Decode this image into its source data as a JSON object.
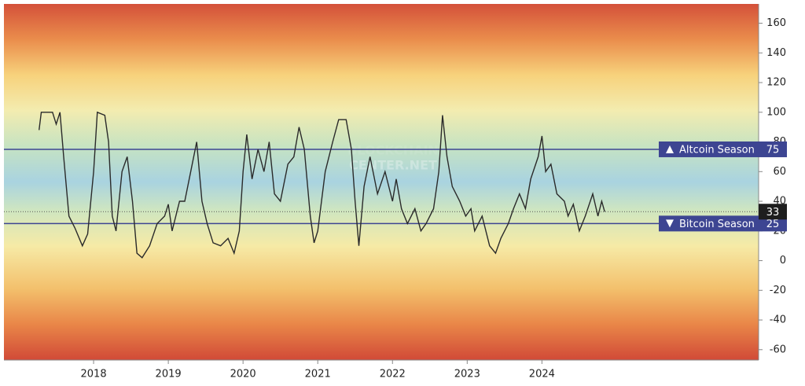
{
  "chart_data": {
    "type": "line",
    "watermark": [
      "BLOCKCHAIN",
      "CENTER.NET"
    ],
    "x": [
      2017.27,
      2017.3,
      2017.45,
      2017.5,
      2017.55,
      2017.6,
      2017.67,
      2017.75,
      2017.85,
      2017.92,
      2018.0,
      2018.05,
      2018.15,
      2018.2,
      2018.25,
      2018.3,
      2018.38,
      2018.45,
      2018.52,
      2018.58,
      2018.65,
      2018.75,
      2018.85,
      2018.95,
      2019.0,
      2019.05,
      2019.15,
      2019.22,
      2019.3,
      2019.38,
      2019.45,
      2019.52,
      2019.6,
      2019.7,
      2019.8,
      2019.88,
      2019.95,
      2020.0,
      2020.05,
      2020.12,
      2020.2,
      2020.28,
      2020.35,
      2020.42,
      2020.5,
      2020.6,
      2020.68,
      2020.75,
      2020.82,
      2020.9,
      2020.95,
      2021.0,
      2021.1,
      2021.2,
      2021.28,
      2021.38,
      2021.45,
      2021.5,
      2021.55,
      2021.62,
      2021.7,
      2021.8,
      2021.9,
      2022.0,
      2022.05,
      2022.12,
      2022.2,
      2022.3,
      2022.38,
      2022.45,
      2022.55,
      2022.62,
      2022.67,
      2022.73,
      2022.8,
      2022.9,
      2022.98,
      2023.05,
      2023.1,
      2023.2,
      2023.3,
      2023.38,
      2023.45,
      2023.55,
      2023.62,
      2023.7,
      2023.78,
      2023.85,
      2023.95,
      2024.0,
      2024.05,
      2024.12,
      2024.2,
      2024.3,
      2024.35,
      2024.42,
      2024.5,
      2024.58,
      2024.68,
      2024.75,
      2024.8,
      2024.84
    ],
    "values": [
      88,
      100,
      100,
      92,
      100,
      70,
      30,
      22,
      10,
      18,
      60,
      100,
      98,
      80,
      30,
      20,
      60,
      70,
      40,
      5,
      2,
      10,
      25,
      30,
      38,
      20,
      40,
      40,
      60,
      80,
      40,
      25,
      12,
      10,
      15,
      5,
      20,
      60,
      85,
      55,
      75,
      60,
      80,
      45,
      40,
      65,
      70,
      90,
      75,
      30,
      12,
      20,
      60,
      80,
      95,
      95,
      75,
      40,
      10,
      50,
      70,
      45,
      60,
      40,
      55,
      35,
      25,
      35,
      20,
      25,
      35,
      60,
      98,
      70,
      50,
      40,
      30,
      35,
      20,
      30,
      10,
      5,
      15,
      25,
      35,
      45,
      35,
      55,
      70,
      84,
      60,
      65,
      45,
      40,
      30,
      38,
      20,
      30,
      45,
      30,
      40,
      33
    ],
    "color": "#2a2a2a",
    "reference_lines": [
      {
        "label": "Altcoin Season",
        "value": 75,
        "color": "#3d4592"
      },
      {
        "label": "Bitcoin Season",
        "value": 25,
        "color": "#3d4592"
      }
    ],
    "xlim": [
      2016.8,
      2026.9
    ],
    "xticks": [
      2018,
      2019,
      2020,
      2021,
      2022,
      2023,
      2024
    ],
    "ylim": [
      -67,
      173
    ],
    "yticks": [
      -60,
      -40,
      -20,
      0,
      20,
      40,
      60,
      80,
      100,
      120,
      140,
      160
    ]
  }
}
